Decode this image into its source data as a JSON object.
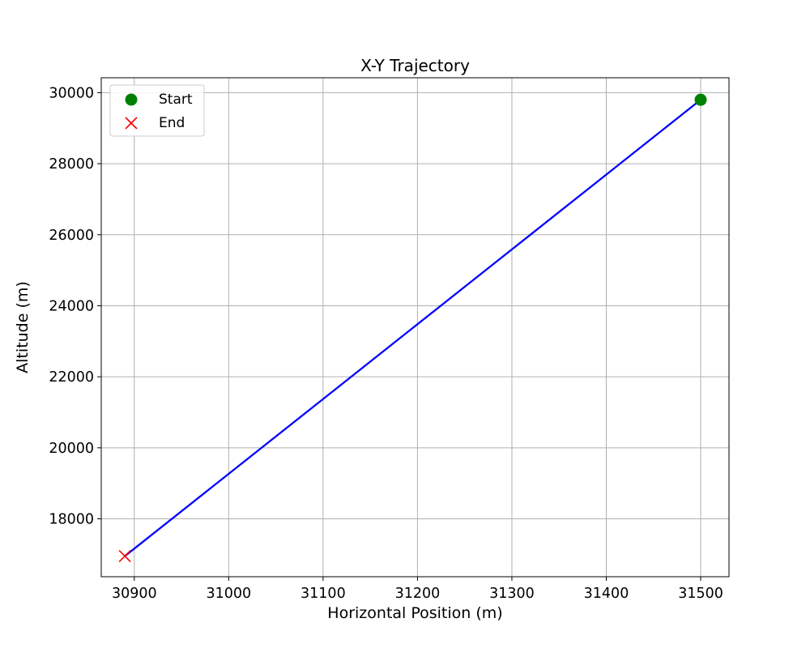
{
  "chart_data": {
    "type": "line",
    "title": "X-Y Trajectory",
    "xlabel": "Horizontal Position (m)",
    "ylabel": "Altitude (m)",
    "xlim": [
      30865,
      31530
    ],
    "ylim": [
      16370,
      30420
    ],
    "x_ticks": [
      30900,
      31000,
      31100,
      31200,
      31300,
      31400,
      31500
    ],
    "y_ticks": [
      18000,
      20000,
      22000,
      24000,
      26000,
      28000,
      30000
    ],
    "grid": true,
    "legend_position": "upper-left",
    "series": [
      {
        "color": "#0000ff",
        "x": [
          31500,
          30890
        ],
        "y": [
          29800,
          16950
        ]
      }
    ],
    "markers": [
      {
        "label": "Start",
        "symbol": "circle",
        "color": "#008000",
        "x": 31500,
        "y": 29800
      },
      {
        "label": "End",
        "symbol": "x",
        "color": "#ff0000",
        "x": 30890,
        "y": 16950
      }
    ]
  }
}
